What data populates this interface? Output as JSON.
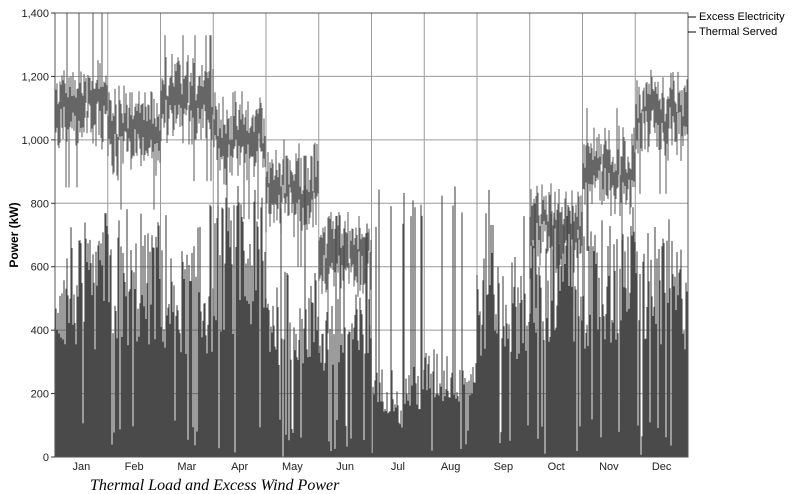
{
  "chart_data": {
    "type": "bar",
    "caption": "Thermal Load and Excess Wind Power",
    "ylabel": "Power (kW)",
    "ylim": [
      0,
      1400
    ],
    "yticks": [
      0,
      200,
      400,
      600,
      800,
      1000,
      1200,
      1400
    ],
    "ytick_labels": [
      "0",
      "200",
      "400",
      "600",
      "800",
      "1,000",
      "1,200",
      "1,400"
    ],
    "categories": [
      "Jan",
      "Feb",
      "Mar",
      "Apr",
      "May",
      "Jun",
      "Jul",
      "Aug",
      "Sep",
      "Oct",
      "Nov",
      "Dec"
    ],
    "grid": true,
    "legend_position": "right",
    "series": [
      {
        "name": "Excess Electricity",
        "color": "#4a4a4a",
        "monthly_typical": [
          600,
          620,
          580,
          700,
          520,
          450,
          250,
          300,
          560,
          600,
          620,
          600
        ],
        "monthly_peak": [
          780,
          790,
          800,
          860,
          860,
          800,
          850,
          860,
          850,
          830,
          800,
          760
        ]
      },
      {
        "name": "Thermal Served",
        "color": "#666666",
        "monthly_typical": [
          1100,
          1030,
          1120,
          1000,
          850,
          640,
          0,
          0,
          0,
          720,
          900,
          1080
        ],
        "monthly_peak": [
          1400,
          1150,
          1330,
          1150,
          950,
          760,
          0,
          0,
          0,
          780,
          1100,
          1340
        ]
      }
    ]
  }
}
